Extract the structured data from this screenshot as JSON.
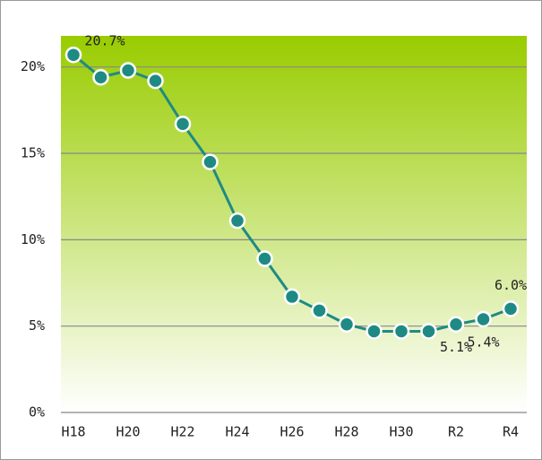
{
  "chart_data": {
    "type": "line",
    "categories": [
      "H18",
      null,
      "H20",
      null,
      "H22",
      null,
      "H24",
      null,
      "H26",
      null,
      "H28",
      null,
      "H30",
      null,
      "R2",
      null,
      "R4"
    ],
    "series": [
      {
        "name": null,
        "color": "#1f8a84",
        "values": [
          20.7,
          19.4,
          19.8,
          19.2,
          16.7,
          14.5,
          11.1,
          8.9,
          6.7,
          5.9,
          5.1,
          4.7,
          4.7,
          4.7,
          5.1,
          5.4,
          6.0
        ],
        "value_labels": [
          "20.7%",
          null,
          null,
          null,
          null,
          null,
          null,
          null,
          null,
          null,
          null,
          null,
          null,
          null,
          "5.1%",
          "5.4%",
          "6.0%"
        ]
      }
    ],
    "ylim": [
      0,
      21.8
    ],
    "yticks": [
      {
        "value": 0,
        "label": "0%"
      },
      {
        "value": 5,
        "label": "5%"
      },
      {
        "value": 10,
        "label": "10%"
      },
      {
        "value": 15,
        "label": "15%"
      },
      {
        "value": 20,
        "label": "20%"
      }
    ],
    "grid": true
  }
}
